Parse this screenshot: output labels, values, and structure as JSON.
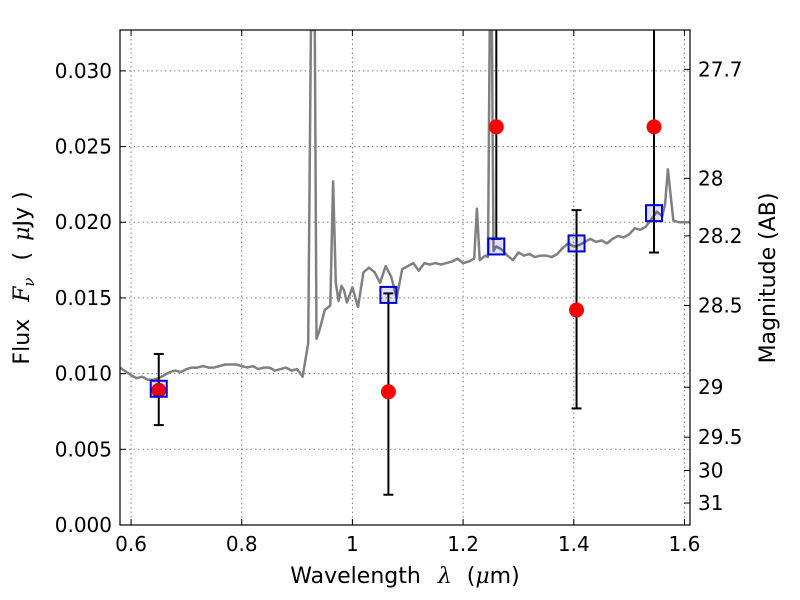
{
  "chart_data": {
    "type": "scatter",
    "xlabel": {
      "prefix": "Wavelength",
      "symbol": "λ",
      "unit_open": "(",
      "unit_mu": "μ",
      "unit_rest": "m)"
    },
    "ylabel": {
      "prefix": "Flux",
      "symbol": "F",
      "subscript": "ν",
      "unit_open": "(",
      "unit_mu": "μ",
      "unit_rest": "Jy )"
    },
    "y2label": "Magnitude (AB)",
    "xlim": [
      0.58,
      1.61
    ],
    "ylim": [
      0.0,
      0.0327
    ],
    "x_ticks": [
      0.6,
      0.8,
      1.0,
      1.2,
      1.4,
      1.6
    ],
    "x_tick_labels": [
      "0.6",
      "0.8",
      "1",
      "1.2",
      "1.4",
      "1.6"
    ],
    "y_ticks": [
      0.0,
      0.005,
      0.01,
      0.015,
      0.02,
      0.025,
      0.03
    ],
    "y_tick_labels": [
      "0.000",
      "0.005",
      "0.010",
      "0.015",
      "0.020",
      "0.025",
      "0.030"
    ],
    "y2_ticks": [
      {
        "label": "27.7",
        "flux": 0.0301
      },
      {
        "label": "28",
        "flux": 0.0229
      },
      {
        "label": "28.2",
        "flux": 0.0191
      },
      {
        "label": "28.5",
        "flux": 0.0145
      },
      {
        "label": "29",
        "flux": 0.0091
      },
      {
        "label": "29.5",
        "flux": 0.0058
      },
      {
        "label": "30",
        "flux": 0.0036
      },
      {
        "label": "31",
        "flux": 0.00145
      }
    ],
    "grid": true,
    "colors": {
      "spectrum": "#808080",
      "observed": "#ff0000",
      "model": "#0000cc",
      "errorbar": "#000000",
      "grid": "#808080"
    },
    "series": [
      {
        "kind": "spectrum-line",
        "x": [
          0.58,
          0.6,
          0.61,
          0.62,
          0.63,
          0.64,
          0.65,
          0.66,
          0.67,
          0.68,
          0.69,
          0.7,
          0.71,
          0.72,
          0.73,
          0.74,
          0.75,
          0.76,
          0.77,
          0.78,
          0.79,
          0.8,
          0.81,
          0.82,
          0.83,
          0.84,
          0.85,
          0.86,
          0.87,
          0.88,
          0.89,
          0.9,
          0.91,
          0.92,
          0.925,
          0.928,
          0.932,
          0.935,
          0.94,
          0.95,
          0.96,
          0.965,
          0.97,
          0.975,
          0.98,
          0.985,
          0.99,
          1.0,
          1.01,
          1.02,
          1.03,
          1.04,
          1.05,
          1.06,
          1.07,
          1.08,
          1.09,
          1.1,
          1.11,
          1.12,
          1.13,
          1.14,
          1.15,
          1.16,
          1.17,
          1.18,
          1.19,
          1.2,
          1.21,
          1.22,
          1.225,
          1.23,
          1.24,
          1.245,
          1.248,
          1.25,
          1.252,
          1.255,
          1.26,
          1.27,
          1.28,
          1.29,
          1.3,
          1.31,
          1.32,
          1.33,
          1.34,
          1.35,
          1.36,
          1.37,
          1.38,
          1.39,
          1.4,
          1.41,
          1.42,
          1.43,
          1.44,
          1.45,
          1.46,
          1.47,
          1.48,
          1.49,
          1.5,
          1.51,
          1.52,
          1.53,
          1.54,
          1.55,
          1.56,
          1.565,
          1.57,
          1.575,
          1.58,
          1.59,
          1.6,
          1.61
        ],
        "y": [
          0.0104,
          0.0099,
          0.0097,
          0.0098,
          0.0096,
          0.0096,
          0.0097,
          0.0099,
          0.0101,
          0.0102,
          0.0101,
          0.0103,
          0.0104,
          0.0104,
          0.0105,
          0.0104,
          0.0104,
          0.0105,
          0.0106,
          0.0106,
          0.0106,
          0.0105,
          0.0104,
          0.0105,
          0.0103,
          0.0104,
          0.0104,
          0.0102,
          0.0103,
          0.0104,
          0.0102,
          0.0103,
          0.0098,
          0.012,
          0.0327,
          0.0327,
          0.0327,
          0.0123,
          0.0128,
          0.0142,
          0.0145,
          0.0227,
          0.016,
          0.0148,
          0.0158,
          0.0155,
          0.0147,
          0.0157,
          0.0144,
          0.0167,
          0.017,
          0.0167,
          0.016,
          0.0171,
          0.0164,
          0.015,
          0.0169,
          0.0171,
          0.0173,
          0.0168,
          0.0173,
          0.0172,
          0.0173,
          0.0172,
          0.0173,
          0.0174,
          0.0176,
          0.0173,
          0.0174,
          0.0176,
          0.0209,
          0.0175,
          0.0178,
          0.0177,
          0.0327,
          0.0327,
          0.0327,
          0.0181,
          0.0184,
          0.0182,
          0.0178,
          0.0175,
          0.018,
          0.0178,
          0.0179,
          0.0177,
          0.0178,
          0.0178,
          0.0177,
          0.0179,
          0.0183,
          0.0186,
          0.0184,
          0.0185,
          0.0187,
          0.0189,
          0.0187,
          0.0188,
          0.0186,
          0.0189,
          0.0191,
          0.019,
          0.0192,
          0.0196,
          0.0195,
          0.0197,
          0.0202,
          0.0207,
          0.0204,
          0.0212,
          0.0235,
          0.0218,
          0.0201,
          0.02,
          0.02,
          0.02
        ]
      },
      {
        "kind": "observed",
        "x": [
          0.65,
          1.065,
          1.26,
          1.405,
          1.545
        ],
        "y": [
          0.0089,
          0.0088,
          0.0263,
          0.0142,
          0.0263
        ],
        "yerr_low": [
          0.0066,
          0.002,
          0.0189,
          0.0077,
          0.018
        ],
        "yerr_high": [
          0.0113,
          0.0153,
          0.0327,
          0.0208,
          0.0327
        ]
      },
      {
        "kind": "model",
        "x": [
          0.65,
          1.065,
          1.26,
          1.405,
          1.545
        ],
        "y": [
          0.009,
          0.0152,
          0.0184,
          0.0186,
          0.0206
        ]
      }
    ]
  }
}
